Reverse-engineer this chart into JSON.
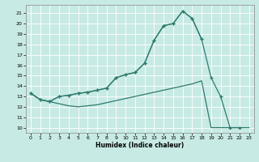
{
  "xlabel": "Humidex (Indice chaleur)",
  "background_color": "#c8eae5",
  "line_color": "#2d7a6e",
  "xlim": [
    -0.5,
    23.5
  ],
  "ylim": [
    9.5,
    21.8
  ],
  "xticks": [
    0,
    1,
    2,
    3,
    4,
    5,
    6,
    7,
    8,
    9,
    10,
    11,
    12,
    13,
    14,
    15,
    16,
    17,
    18,
    19,
    20,
    21,
    22,
    23
  ],
  "yticks": [
    10,
    11,
    12,
    13,
    14,
    15,
    16,
    17,
    18,
    19,
    20,
    21
  ],
  "line1_x": [
    0,
    1,
    2,
    3,
    4,
    5,
    6,
    7,
    8,
    9,
    10,
    11,
    12,
    13,
    14,
    15,
    16,
    17,
    18
  ],
  "line1_y": [
    13.3,
    12.7,
    12.5,
    13.0,
    13.1,
    13.3,
    13.4,
    13.6,
    13.8,
    14.8,
    15.1,
    15.3,
    16.2,
    18.4,
    19.8,
    20.0,
    21.2,
    20.5,
    18.5
  ],
  "line2_x": [
    0,
    1,
    2,
    3,
    4,
    5,
    6,
    7,
    8,
    9,
    10,
    11,
    12,
    13,
    14,
    15,
    16,
    17,
    18,
    19,
    20,
    21,
    22
  ],
  "line2_y": [
    13.3,
    12.7,
    12.5,
    13.0,
    13.1,
    13.3,
    13.4,
    13.6,
    13.8,
    14.8,
    15.1,
    15.3,
    16.2,
    18.4,
    19.8,
    20.0,
    21.2,
    20.5,
    18.5,
    14.8,
    13.0,
    10.0,
    10.0
  ],
  "line3_x": [
    0,
    1,
    2,
    3,
    4,
    5,
    6,
    7,
    8,
    9,
    10,
    11,
    12,
    13,
    14,
    15,
    16,
    17,
    18,
    19,
    20,
    21,
    22,
    23
  ],
  "line3_y": [
    13.3,
    12.7,
    12.5,
    12.3,
    12.1,
    12.0,
    12.1,
    12.2,
    12.4,
    12.6,
    12.8,
    13.0,
    13.2,
    13.4,
    13.6,
    13.8,
    14.0,
    14.2,
    14.5,
    10.0,
    10.0,
    10.0,
    10.0,
    10.0
  ]
}
